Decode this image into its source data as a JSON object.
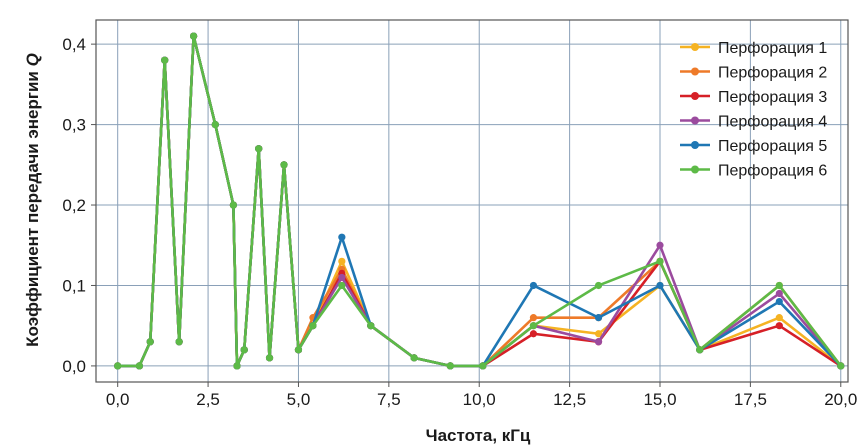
{
  "chart_data": {
    "type": "line",
    "xlabel": "Частота, кГц",
    "ylabel": "Коэффициент передачи энергии Q",
    "ylabel_main": "Коэффициент передачи энергии ",
    "ylabel_symbol": "Q",
    "xlim": [
      -0.6,
      20.2
    ],
    "ylim": [
      -0.02,
      0.43
    ],
    "xticks": [
      0.0,
      2.5,
      5.0,
      7.5,
      10.0,
      12.5,
      15.0,
      17.5,
      20.0
    ],
    "xtick_labels": [
      "0,0",
      "2,5",
      "5,0",
      "7,5",
      "10,0",
      "12,5",
      "15,0",
      "17,5",
      "20,0"
    ],
    "yticks": [
      0.0,
      0.1,
      0.2,
      0.3,
      0.4
    ],
    "ytick_labels": [
      "0,0",
      "0,1",
      "0,2",
      "0,3",
      "0,4"
    ],
    "grid": true,
    "legend_position": "top-right",
    "series": [
      {
        "name": "Перфорация 1",
        "color": "#f5b323",
        "points": [
          [
            0,
            0
          ],
          [
            0.6,
            0
          ],
          [
            0.9,
            0.03
          ],
          [
            1.3,
            0.38
          ],
          [
            1.7,
            0.03
          ],
          [
            2.1,
            0.41
          ],
          [
            2.7,
            0.3
          ],
          [
            3.2,
            0.2
          ],
          [
            3.3,
            0
          ],
          [
            3.5,
            0.02
          ],
          [
            3.9,
            0.27
          ],
          [
            4.2,
            0.01
          ],
          [
            4.6,
            0.25
          ],
          [
            5.0,
            0.02
          ],
          [
            5.4,
            0.05
          ],
          [
            6.2,
            0.13
          ],
          [
            7.0,
            0.05
          ],
          [
            8.2,
            0.01
          ],
          [
            9.2,
            0
          ],
          [
            10.1,
            0
          ],
          [
            11.5,
            0.05
          ],
          [
            13.3,
            0.04
          ],
          [
            15.0,
            0.1
          ],
          [
            16.1,
            0.02
          ],
          [
            18.3,
            0.06
          ],
          [
            20.0,
            0
          ]
        ]
      },
      {
        "name": "Перфорация 2",
        "color": "#ee7a29",
        "points": [
          [
            0,
            0
          ],
          [
            0.6,
            0
          ],
          [
            0.9,
            0.03
          ],
          [
            1.3,
            0.38
          ],
          [
            1.7,
            0.03
          ],
          [
            2.1,
            0.41
          ],
          [
            2.7,
            0.3
          ],
          [
            3.2,
            0.2
          ],
          [
            3.3,
            0
          ],
          [
            3.5,
            0.02
          ],
          [
            3.9,
            0.27
          ],
          [
            4.2,
            0.01
          ],
          [
            4.6,
            0.25
          ],
          [
            5.0,
            0.02
          ],
          [
            5.4,
            0.06
          ],
          [
            6.2,
            0.12
          ],
          [
            7.0,
            0.05
          ],
          [
            8.2,
            0.01
          ],
          [
            9.2,
            0
          ],
          [
            10.1,
            0
          ],
          [
            11.5,
            0.06
          ],
          [
            13.3,
            0.06
          ],
          [
            15.0,
            0.13
          ],
          [
            16.1,
            0.02
          ],
          [
            18.3,
            0.1
          ],
          [
            20.0,
            0
          ]
        ]
      },
      {
        "name": "Перфорация 3",
        "color": "#d62027",
        "points": [
          [
            0,
            0
          ],
          [
            0.6,
            0
          ],
          [
            0.9,
            0.03
          ],
          [
            1.3,
            0.38
          ],
          [
            1.7,
            0.03
          ],
          [
            2.1,
            0.41
          ],
          [
            2.7,
            0.3
          ],
          [
            3.2,
            0.2
          ],
          [
            3.3,
            0
          ],
          [
            3.5,
            0.02
          ],
          [
            3.9,
            0.27
          ],
          [
            4.2,
            0.01
          ],
          [
            4.6,
            0.25
          ],
          [
            5.0,
            0.02
          ],
          [
            5.4,
            0.05
          ],
          [
            6.2,
            0.115
          ],
          [
            7.0,
            0.05
          ],
          [
            8.2,
            0.01
          ],
          [
            9.2,
            0
          ],
          [
            10.1,
            0
          ],
          [
            11.5,
            0.04
          ],
          [
            13.3,
            0.03
          ],
          [
            15.0,
            0.13
          ],
          [
            16.1,
            0.02
          ],
          [
            18.3,
            0.05
          ],
          [
            20.0,
            0
          ]
        ]
      },
      {
        "name": "Перфорация 4",
        "color": "#9b4b9e",
        "points": [
          [
            0,
            0
          ],
          [
            0.6,
            0
          ],
          [
            0.9,
            0.03
          ],
          [
            1.3,
            0.38
          ],
          [
            1.7,
            0.03
          ],
          [
            2.1,
            0.41
          ],
          [
            2.7,
            0.3
          ],
          [
            3.2,
            0.2
          ],
          [
            3.3,
            0
          ],
          [
            3.5,
            0.02
          ],
          [
            3.9,
            0.27
          ],
          [
            4.2,
            0.01
          ],
          [
            4.6,
            0.25
          ],
          [
            5.0,
            0.02
          ],
          [
            5.4,
            0.05
          ],
          [
            6.2,
            0.11
          ],
          [
            7.0,
            0.05
          ],
          [
            8.2,
            0.01
          ],
          [
            9.2,
            0
          ],
          [
            10.1,
            0
          ],
          [
            11.5,
            0.05
          ],
          [
            13.3,
            0.03
          ],
          [
            15.0,
            0.15
          ],
          [
            16.1,
            0.02
          ],
          [
            18.3,
            0.09
          ],
          [
            20.0,
            0
          ]
        ]
      },
      {
        "name": "Перфорация 5",
        "color": "#1f77b4",
        "points": [
          [
            0,
            0
          ],
          [
            0.6,
            0
          ],
          [
            0.9,
            0.03
          ],
          [
            1.3,
            0.38
          ],
          [
            1.7,
            0.03
          ],
          [
            2.1,
            0.41
          ],
          [
            2.7,
            0.3
          ],
          [
            3.2,
            0.2
          ],
          [
            3.3,
            0
          ],
          [
            3.5,
            0.02
          ],
          [
            3.9,
            0.27
          ],
          [
            4.2,
            0.01
          ],
          [
            4.6,
            0.25
          ],
          [
            5.0,
            0.02
          ],
          [
            5.4,
            0.05
          ],
          [
            6.2,
            0.16
          ],
          [
            7.0,
            0.05
          ],
          [
            8.2,
            0.01
          ],
          [
            9.2,
            0
          ],
          [
            10.1,
            0
          ],
          [
            11.5,
            0.1
          ],
          [
            13.3,
            0.06
          ],
          [
            15.0,
            0.1
          ],
          [
            16.1,
            0.02
          ],
          [
            18.3,
            0.08
          ],
          [
            20.0,
            0
          ]
        ]
      },
      {
        "name": "Перфорация 6",
        "color": "#5dba47",
        "points": [
          [
            0,
            0
          ],
          [
            0.6,
            0
          ],
          [
            0.9,
            0.03
          ],
          [
            1.3,
            0.38
          ],
          [
            1.7,
            0.03
          ],
          [
            2.1,
            0.41
          ],
          [
            2.7,
            0.3
          ],
          [
            3.2,
            0.2
          ],
          [
            3.3,
            0
          ],
          [
            3.5,
            0.02
          ],
          [
            3.9,
            0.27
          ],
          [
            4.2,
            0.01
          ],
          [
            4.6,
            0.25
          ],
          [
            5.0,
            0.02
          ],
          [
            5.4,
            0.05
          ],
          [
            6.2,
            0.1
          ],
          [
            7.0,
            0.05
          ],
          [
            8.2,
            0.01
          ],
          [
            9.2,
            0
          ],
          [
            10.1,
            0
          ],
          [
            11.5,
            0.05
          ],
          [
            13.3,
            0.1
          ],
          [
            15.0,
            0.13
          ],
          [
            16.1,
            0.02
          ],
          [
            18.3,
            0.1
          ],
          [
            20.0,
            0
          ]
        ]
      }
    ]
  }
}
